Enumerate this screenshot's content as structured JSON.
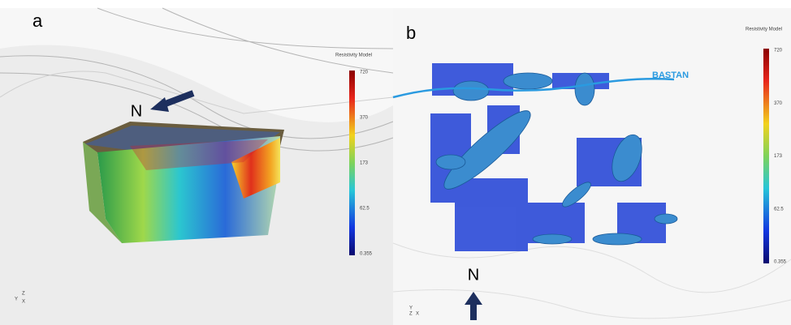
{
  "panel_a": {
    "label": "a",
    "colorbar": {
      "title": "Resistivity Model",
      "ticks": [
        "720",
        "370",
        "173",
        "62.5",
        "0.355"
      ]
    },
    "north": "N",
    "axes": [
      "Z",
      "Y",
      "X"
    ]
  },
  "panel_b": {
    "label": "b",
    "colorbar": {
      "title": "Resistivity Model",
      "ticks": [
        "720",
        "370",
        "173",
        "62.5",
        "0.355"
      ]
    },
    "river": "BASTAN",
    "north": "N",
    "axes": [
      "Y",
      "Z",
      "X"
    ]
  }
}
